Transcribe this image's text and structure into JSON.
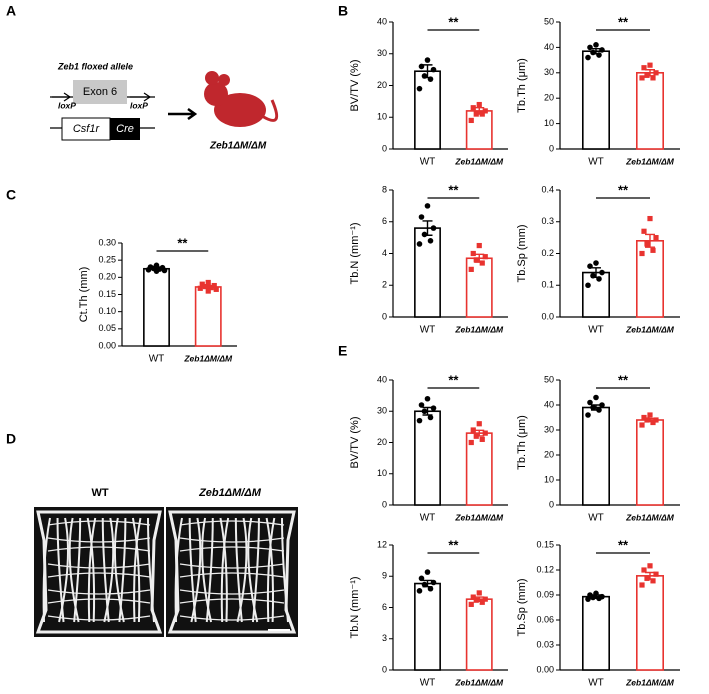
{
  "figure": {
    "panel_labels": [
      "A",
      "B",
      "C",
      "D",
      "E"
    ],
    "allele_title": "Zeb1 floxed allele",
    "exon": "Exon 6",
    "loxp_left": "loxP",
    "loxp_right": "loxP",
    "promoter": "Csf1r",
    "recombinase": "Cre",
    "mouse_label": "Zeb1ΔM/ΔM",
    "image_labels": [
      "WT",
      "Zeb1ΔM/ΔM"
    ]
  },
  "chart_data": [
    {
      "type": "bar",
      "ylabel": "BV/TV (%)",
      "categories": [
        "WT",
        "Zeb1ΔM/ΔM"
      ],
      "colors": [
        "#000000",
        "#e8332f"
      ],
      "values": [
        24.5,
        12
      ],
      "errors": [
        2,
        1
      ],
      "points": [
        [
          28,
          26,
          25,
          23,
          22,
          19
        ],
        [
          14,
          13,
          12,
          11,
          11,
          9
        ]
      ],
      "ylim": [
        0,
        40
      ],
      "yticks": [
        0,
        10,
        20,
        30,
        40
      ],
      "significance": "**"
    },
    {
      "type": "bar",
      "ylabel": "Tb.Th (μm)",
      "categories": [
        "WT",
        "Zeb1ΔM/ΔM"
      ],
      "colors": [
        "#000000",
        "#e8332f"
      ],
      "values": [
        38.5,
        30
      ],
      "errors": [
        1,
        1.2
      ],
      "points": [
        [
          41,
          40,
          39,
          38,
          37,
          36
        ],
        [
          33,
          32,
          30,
          29,
          28,
          28
        ]
      ],
      "ylim": [
        0,
        50
      ],
      "yticks": [
        0,
        10,
        20,
        30,
        40,
        50
      ],
      "significance": "**"
    },
    {
      "type": "bar",
      "ylabel": "Tb.N (mm⁻¹)",
      "categories": [
        "WT",
        "Zeb1ΔM/ΔM"
      ],
      "colors": [
        "#000000",
        "#e8332f"
      ],
      "values": [
        5.6,
        3.7
      ],
      "errors": [
        0.45,
        0.25
      ],
      "points": [
        [
          7,
          6.3,
          5.6,
          5.2,
          4.8,
          4.6
        ],
        [
          4.5,
          4,
          3.8,
          3.6,
          3.4,
          3
        ]
      ],
      "ylim": [
        0,
        8
      ],
      "yticks": [
        0,
        2,
        4,
        6,
        8
      ],
      "significance": "**"
    },
    {
      "type": "bar",
      "ylabel": "Tb.Sp (mm)",
      "categories": [
        "WT",
        "Zeb1ΔM/ΔM"
      ],
      "colors": [
        "#000000",
        "#e8332f"
      ],
      "values": [
        0.14,
        0.24
      ],
      "errors": [
        0.015,
        0.02
      ],
      "points": [
        [
          0.17,
          0.16,
          0.14,
          0.13,
          0.12,
          0.1
        ],
        [
          0.31,
          0.27,
          0.25,
          0.23,
          0.21,
          0.2
        ]
      ],
      "ylim": [
        0,
        0.4
      ],
      "yticks": [
        {
          "value": 0,
          "label": "0.0"
        },
        0.1,
        0.2,
        0.3,
        0.4
      ],
      "significance": "**"
    },
    {
      "type": "bar",
      "ylabel": "Ct.Th (mm)",
      "categories": [
        "WT",
        "Zeb1ΔM/ΔM"
      ],
      "colors": [
        "#000000",
        "#e8332f"
      ],
      "values": [
        0.225,
        0.172
      ],
      "errors": [
        0.003,
        0.004
      ],
      "points": [
        [
          0.235,
          0.23,
          0.228,
          0.226,
          0.224,
          0.222,
          0.22,
          0.218
        ],
        [
          0.185,
          0.18,
          0.176,
          0.173,
          0.17,
          0.168,
          0.165,
          0.16
        ]
      ],
      "ylim": [
        0,
        0.3
      ],
      "yticks": [
        {
          "value": 0,
          "label": "0.00"
        },
        0.05,
        {
          "value": 0.1,
          "label": "0.10"
        },
        0.15,
        {
          "value": 0.2,
          "label": "0.20"
        },
        0.25,
        {
          "value": 0.3,
          "label": "0.30"
        }
      ],
      "significance": "**"
    },
    {
      "type": "bar",
      "ylabel": "BV/TV (%)",
      "categories": [
        "WT",
        "Zeb1ΔM/ΔM"
      ],
      "colors": [
        "#000000",
        "#e8332f"
      ],
      "values": [
        30,
        23
      ],
      "errors": [
        1.2,
        0.9
      ],
      "points": [
        [
          34,
          32,
          31,
          30,
          28,
          27
        ],
        [
          26,
          24,
          23,
          22,
          21,
          20
        ]
      ],
      "ylim": [
        0,
        40
      ],
      "yticks": [
        0,
        10,
        20,
        30,
        40
      ],
      "significance": "**"
    },
    {
      "type": "bar",
      "ylabel": "Tb.Th (μm)",
      "categories": [
        "WT",
        "Zeb1ΔM/ΔM"
      ],
      "colors": [
        "#000000",
        "#e8332f"
      ],
      "values": [
        39,
        34
      ],
      "errors": [
        1,
        0.6
      ],
      "points": [
        [
          43,
          41,
          40,
          39,
          38,
          36
        ],
        [
          36,
          35,
          34,
          34,
          33,
          32
        ]
      ],
      "ylim": [
        0,
        50
      ],
      "yticks": [
        0,
        10,
        20,
        30,
        40,
        50
      ],
      "significance": "**"
    },
    {
      "type": "bar",
      "ylabel": "Tb.N (mm⁻¹)",
      "categories": [
        "WT",
        "Zeb1ΔM/ΔM"
      ],
      "colors": [
        "#000000",
        "#e8332f"
      ],
      "values": [
        8.3,
        6.8
      ],
      "errors": [
        0.3,
        0.2
      ],
      "points": [
        [
          9.4,
          8.8,
          8.4,
          8.2,
          7.8,
          7.6
        ],
        [
          7.4,
          7,
          6.8,
          6.7,
          6.5,
          6.3
        ]
      ],
      "ylim": [
        0,
        12
      ],
      "yticks": [
        0,
        3,
        6,
        9,
        12
      ],
      "significance": "**"
    },
    {
      "type": "bar",
      "ylabel": "Tb.Sp (mm)",
      "categories": [
        "WT",
        "Zeb1ΔM/ΔM"
      ],
      "colors": [
        "#000000",
        "#e8332f"
      ],
      "values": [
        0.088,
        0.113
      ],
      "errors": [
        0.002,
        0.004
      ],
      "points": [
        [
          0.092,
          0.09,
          0.088,
          0.087,
          0.086,
          0.085
        ],
        [
          0.125,
          0.12,
          0.115,
          0.11,
          0.107,
          0.102
        ]
      ],
      "ylim": [
        0,
        0.15
      ],
      "yticks": [
        {
          "value": 0,
          "label": "0.00"
        },
        0.03,
        0.06,
        0.09,
        0.12,
        0.15
      ],
      "significance": "**"
    }
  ]
}
